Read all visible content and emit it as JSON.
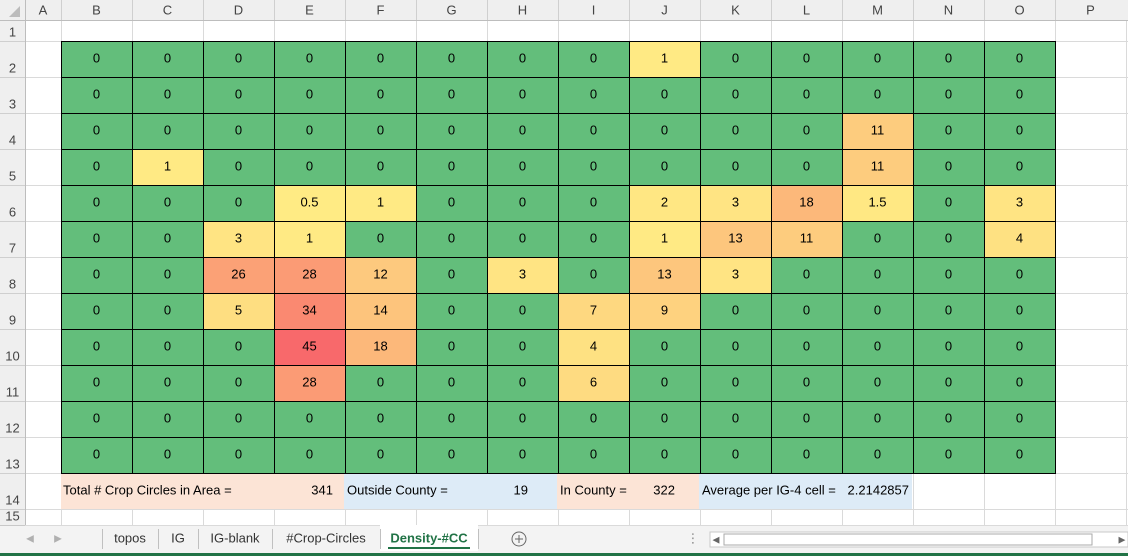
{
  "column_headers": [
    "A",
    "B",
    "C",
    "D",
    "E",
    "F",
    "G",
    "H",
    "I",
    "J",
    "K",
    "L",
    "M",
    "N",
    "O",
    "P"
  ],
  "row_headers": [
    1,
    2,
    3,
    4,
    5,
    6,
    7,
    8,
    9,
    10,
    11,
    12,
    13,
    14,
    15
  ],
  "table": {
    "rows": [
      [
        0,
        0,
        0,
        0,
        0,
        0,
        0,
        0,
        1,
        0,
        0,
        0,
        0,
        0
      ],
      [
        0,
        0,
        0,
        0,
        0,
        0,
        0,
        0,
        0,
        0,
        0,
        0,
        0,
        0
      ],
      [
        0,
        0,
        0,
        0,
        0,
        0,
        0,
        0,
        0,
        0,
        0,
        11,
        0,
        0
      ],
      [
        0,
        1,
        0,
        0,
        0,
        0,
        0,
        0,
        0,
        0,
        0,
        11,
        0,
        0
      ],
      [
        0,
        0,
        0,
        0.5,
        1,
        0,
        0,
        0,
        2,
        3,
        18,
        1.5,
        0,
        3
      ],
      [
        0,
        0,
        3,
        1,
        0,
        0,
        0,
        0,
        1,
        13,
        11,
        0,
        0,
        4
      ],
      [
        0,
        0,
        26,
        28,
        12,
        0,
        3,
        0,
        13,
        3,
        0,
        0,
        0,
        0
      ],
      [
        0,
        0,
        5,
        34,
        14,
        0,
        0,
        7,
        9,
        0,
        0,
        0,
        0,
        0
      ],
      [
        0,
        0,
        0,
        45,
        18,
        0,
        0,
        4,
        0,
        0,
        0,
        0,
        0,
        0
      ],
      [
        0,
        0,
        0,
        28,
        0,
        0,
        0,
        6,
        0,
        0,
        0,
        0,
        0,
        0
      ],
      [
        0,
        0,
        0,
        0,
        0,
        0,
        0,
        0,
        0,
        0,
        0,
        0,
        0,
        0
      ],
      [
        0,
        0,
        0,
        0,
        0,
        0,
        0,
        0,
        0,
        0,
        0,
        0,
        0,
        0
      ]
    ]
  },
  "color_scale": [
    "#63be7b",
    "#ffeb84",
    "#f8696b"
  ],
  "summary": {
    "total_label": "Total # Crop Circles in Area =",
    "total_value": 341,
    "outside_label": "Outside County =",
    "outside_value": 19,
    "in_label": "In County =",
    "in_value": 322,
    "average_label": "Average per IG-4 cell =",
    "average_value": 2.2142857
  },
  "sheet_tabs": [
    "topos",
    "IG",
    "IG-blank",
    "#Crop-Circles",
    "Density-#CC"
  ],
  "active_tab": 4
}
